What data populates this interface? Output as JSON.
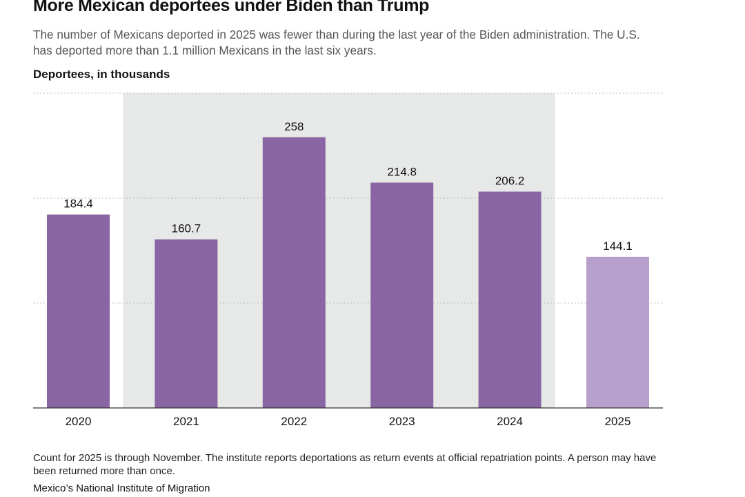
{
  "title": "More Mexican deportees under Biden than Trump",
  "subtitle": "The number of Mexicans deported in 2025 was fewer than during the last year of the Biden administration. The U.S. has deported more than 1.1 million Mexicans in the last six years.",
  "note": "Count for 2025 is through November. The institute reports deportations as return events at official repatriation points. A person may have been returned more than once.",
  "source": "Mexico’s National Institute of Migration",
  "chart_data": {
    "type": "bar",
    "title": "More Mexican deportees under Biden than Trump",
    "xlabel": "",
    "ylabel": "Deportees, in thousands",
    "categories": [
      "2020",
      "2021",
      "2022",
      "2023",
      "2024",
      "2025"
    ],
    "values": [
      184.4,
      160.7,
      258,
      214.8,
      206.2,
      144.1
    ],
    "data_labels": [
      "184.4",
      "160.7",
      "258",
      "214.8",
      "206.2",
      "144.1"
    ],
    "ylim": [
      0,
      300
    ],
    "gridlines": [
      100,
      200,
      300
    ],
    "grid": true,
    "shaded_range": [
      "2021",
      "2024"
    ],
    "colors": {
      "bar": "#8966a3",
      "bar_highlight": "#b8a0cc",
      "shade": "#e7e8e8"
    }
  }
}
